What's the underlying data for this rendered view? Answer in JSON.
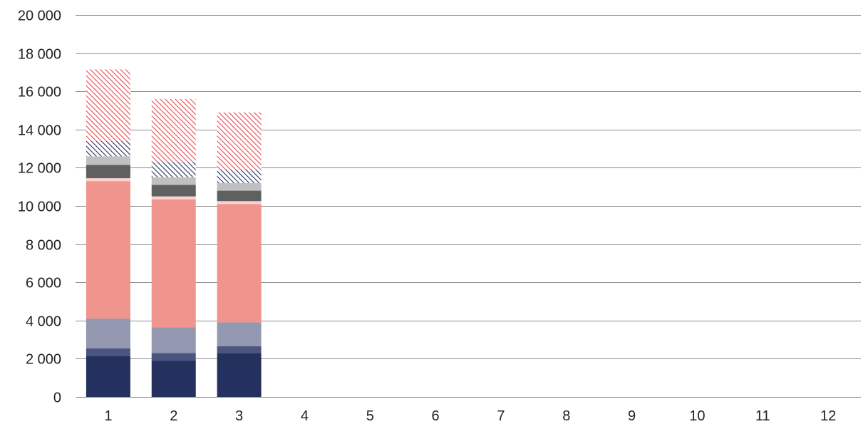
{
  "chart_data": {
    "type": "bar",
    "stacked": true,
    "title": "",
    "xlabel": "",
    "ylabel": "",
    "ylim": [
      0,
      20000
    ],
    "grid": true,
    "legend": "none",
    "categories": [
      "1",
      "2",
      "3",
      "4",
      "5",
      "6",
      "7",
      "8",
      "9",
      "10",
      "11",
      "12"
    ],
    "y_ticks": [
      0,
      2000,
      4000,
      6000,
      8000,
      10000,
      12000,
      14000,
      16000,
      18000,
      20000
    ],
    "y_tick_labels": [
      "0",
      "2 000",
      "4 000",
      "6 000",
      "8 000",
      "10 000",
      "12 000",
      "14 000",
      "16 000",
      "18 000",
      "20 000"
    ],
    "series": [
      {
        "color": "#24305e",
        "pattern": "solid",
        "values": [
          2150,
          1900,
          2300,
          null,
          null,
          null,
          null,
          null,
          null,
          null,
          null,
          null
        ]
      },
      {
        "color": "#4a5680",
        "pattern": "solid",
        "values": [
          400,
          400,
          350,
          null,
          null,
          null,
          null,
          null,
          null,
          null,
          null,
          null
        ]
      },
      {
        "color": "#9398b0",
        "pattern": "solid",
        "values": [
          1550,
          1350,
          1250,
          null,
          null,
          null,
          null,
          null,
          null,
          null,
          null,
          null
        ]
      },
      {
        "color": "#f0948e",
        "pattern": "solid",
        "values": [
          7200,
          6700,
          6200,
          null,
          null,
          null,
          null,
          null,
          null,
          null,
          null,
          null
        ]
      },
      {
        "color": "#fbd2cf",
        "pattern": "solid",
        "values": [
          150,
          150,
          150,
          null,
          null,
          null,
          null,
          null,
          null,
          null,
          null,
          null
        ]
      },
      {
        "color": "#606060",
        "pattern": "solid",
        "values": [
          700,
          600,
          550,
          null,
          null,
          null,
          null,
          null,
          null,
          null,
          null,
          null
        ]
      },
      {
        "color": "#c0c0c0",
        "pattern": "solid",
        "values": [
          450,
          400,
          400,
          null,
          null,
          null,
          null,
          null,
          null,
          null,
          null,
          null
        ]
      },
      {
        "color": "#24305e",
        "pattern": "hatched",
        "values": [
          800,
          800,
          700,
          null,
          null,
          null,
          null,
          null,
          null,
          null,
          null,
          null
        ]
      },
      {
        "color": "#e8494f",
        "pattern": "hatched",
        "values": [
          3750,
          3300,
          3000,
          null,
          null,
          null,
          null,
          null,
          null,
          null,
          null,
          null
        ]
      }
    ]
  }
}
